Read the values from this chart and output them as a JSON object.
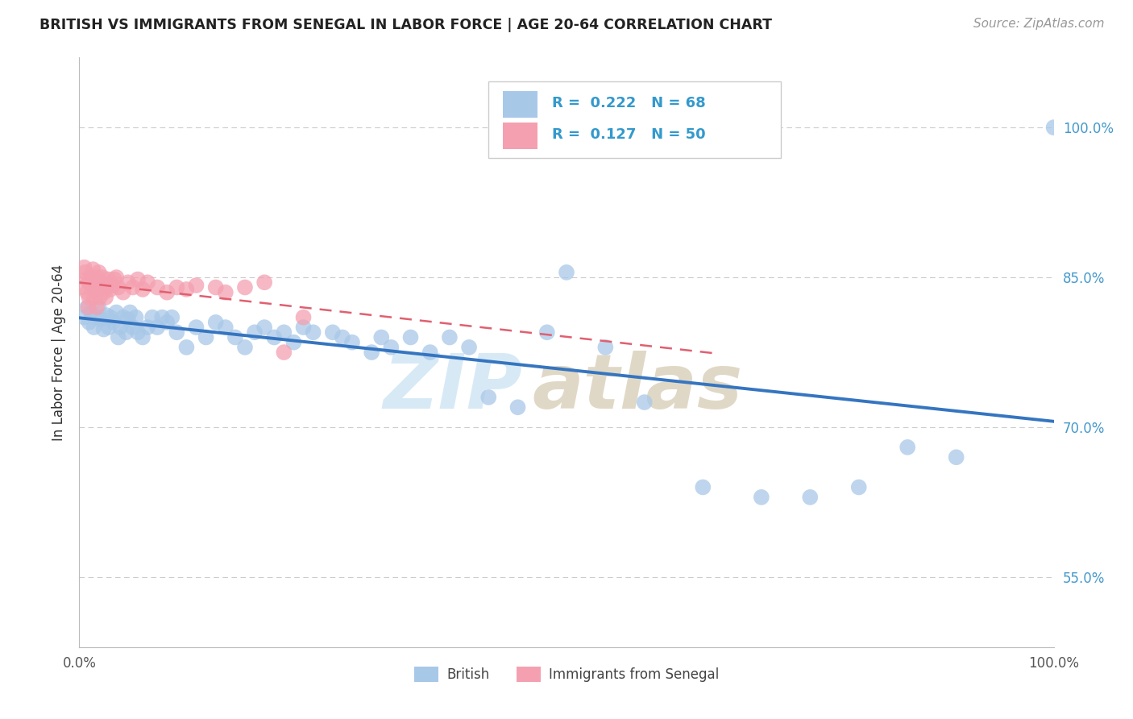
{
  "title": "BRITISH VS IMMIGRANTS FROM SENEGAL IN LABOR FORCE | AGE 20-64 CORRELATION CHART",
  "source": "Source: ZipAtlas.com",
  "ylabel": "In Labor Force | Age 20-64",
  "x_min": 0.0,
  "x_max": 1.0,
  "y_min": 0.48,
  "y_max": 1.07,
  "y_tick_labels": [
    "55.0%",
    "70.0%",
    "85.0%",
    "100.0%"
  ],
  "y_tick_vals": [
    0.55,
    0.7,
    0.85,
    1.0
  ],
  "grid_color": "#cccccc",
  "background_color": "#ffffff",
  "legend_R_british": "0.222",
  "legend_N_british": "68",
  "legend_R_senegal": "0.127",
  "legend_N_senegal": "50",
  "british_color": "#a8c8e8",
  "senegal_color": "#f4a0b0",
  "british_line_color": "#3575c0",
  "senegal_line_color": "#e06070",
  "blue_scatter_x": [
    0.005,
    0.008,
    0.01,
    0.012,
    0.015,
    0.018,
    0.02,
    0.022,
    0.025,
    0.028,
    0.03,
    0.032,
    0.035,
    0.038,
    0.04,
    0.042,
    0.045,
    0.048,
    0.05,
    0.052,
    0.055,
    0.058,
    0.06,
    0.065,
    0.07,
    0.075,
    0.08,
    0.085,
    0.09,
    0.095,
    0.1,
    0.11,
    0.12,
    0.13,
    0.14,
    0.15,
    0.16,
    0.17,
    0.18,
    0.19,
    0.2,
    0.21,
    0.22,
    0.23,
    0.24,
    0.26,
    0.27,
    0.28,
    0.3,
    0.31,
    0.32,
    0.34,
    0.36,
    0.38,
    0.4,
    0.42,
    0.45,
    0.48,
    0.5,
    0.54,
    0.58,
    0.64,
    0.7,
    0.75,
    0.8,
    0.85,
    0.9,
    1.0
  ],
  "blue_scatter_y": [
    0.81,
    0.82,
    0.805,
    0.815,
    0.8,
    0.81,
    0.82,
    0.808,
    0.798,
    0.812,
    0.8,
    0.81,
    0.805,
    0.815,
    0.79,
    0.8,
    0.81,
    0.795,
    0.808,
    0.815,
    0.8,
    0.81,
    0.795,
    0.79,
    0.8,
    0.81,
    0.8,
    0.81,
    0.805,
    0.81,
    0.795,
    0.78,
    0.8,
    0.79,
    0.805,
    0.8,
    0.79,
    0.78,
    0.795,
    0.8,
    0.79,
    0.795,
    0.785,
    0.8,
    0.795,
    0.795,
    0.79,
    0.785,
    0.775,
    0.79,
    0.78,
    0.79,
    0.775,
    0.79,
    0.78,
    0.73,
    0.72,
    0.795,
    0.855,
    0.78,
    0.725,
    0.64,
    0.63,
    0.63,
    0.64,
    0.68,
    0.67,
    1.0
  ],
  "pink_scatter_x": [
    0.003,
    0.005,
    0.006,
    0.007,
    0.008,
    0.009,
    0.01,
    0.01,
    0.012,
    0.013,
    0.014,
    0.015,
    0.016,
    0.017,
    0.018,
    0.018,
    0.019,
    0.02,
    0.02,
    0.021,
    0.022,
    0.023,
    0.024,
    0.025,
    0.026,
    0.027,
    0.028,
    0.03,
    0.032,
    0.034,
    0.036,
    0.038,
    0.04,
    0.045,
    0.05,
    0.055,
    0.06,
    0.065,
    0.07,
    0.08,
    0.09,
    0.1,
    0.11,
    0.12,
    0.14,
    0.15,
    0.17,
    0.19,
    0.21,
    0.23
  ],
  "pink_scatter_y": [
    0.84,
    0.86,
    0.855,
    0.848,
    0.835,
    0.82,
    0.845,
    0.83,
    0.85,
    0.84,
    0.858,
    0.83,
    0.845,
    0.835,
    0.85,
    0.82,
    0.84,
    0.855,
    0.838,
    0.83,
    0.845,
    0.84,
    0.85,
    0.835,
    0.842,
    0.83,
    0.84,
    0.848,
    0.838,
    0.842,
    0.848,
    0.85,
    0.84,
    0.835,
    0.845,
    0.84,
    0.848,
    0.838,
    0.845,
    0.84,
    0.835,
    0.84,
    0.838,
    0.842,
    0.84,
    0.835,
    0.84,
    0.845,
    0.775,
    0.81
  ]
}
